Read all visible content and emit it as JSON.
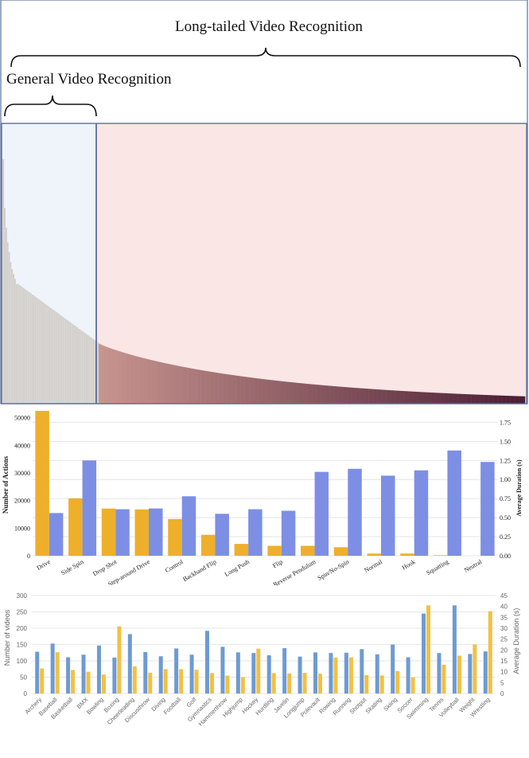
{
  "header": {
    "long_tail_label": "Long-tailed Video Recognition",
    "general_label": "General Video Recognition"
  },
  "colors": {
    "general_region": "#eef4fa",
    "longtail_region": "#fbe6e6",
    "border": "#5a6e9c",
    "gray_bar": "#cfccc8",
    "tail_start": "#c7948e",
    "tail_end": "#4a1d33",
    "orange": "#eeb02a",
    "blue": "#7d8fe4",
    "blue_small": "#6d9bd3",
    "orange_small": "#f4c042"
  },
  "chart_data": [
    {
      "type": "bar",
      "title": "",
      "description_values": "long-tailed class frequency distribution (sorted, normalized)",
      "general_split_index": 66,
      "num_bars": 358,
      "values_head": [
        1.0,
        0.8,
        0.72,
        0.66,
        0.62,
        0.58,
        0.55,
        0.53,
        0.51,
        0.49
      ],
      "values_tail_end": 0.03
    },
    {
      "type": "bar",
      "categories": [
        "Drive",
        "Side Spin",
        "Drop Shot",
        "Step-around Drive",
        "Control",
        "Backhand Flip",
        "Long Push",
        "Flip",
        "Reverse Pendulum",
        "Spin/No-Spin",
        "Normal",
        "Hook",
        "Squatting",
        "Neutral"
      ],
      "series": [
        {
          "name": "Number of Actions",
          "axis": "left",
          "values": [
            52500,
            20800,
            17100,
            16800,
            13300,
            7600,
            4300,
            3600,
            3600,
            3100,
            800,
            800,
            200,
            0
          ]
        },
        {
          "name": "Average Duration (s)",
          "axis": "right",
          "values": [
            0.56,
            1.25,
            0.61,
            0.62,
            0.78,
            0.55,
            0.61,
            0.59,
            1.1,
            1.14,
            1.05,
            1.12,
            1.38,
            1.23
          ]
        }
      ],
      "ylabel": "Number of Actions",
      "y2label": "Average Duration (s)",
      "ylim": [
        0,
        52500
      ],
      "y2lim": [
        0,
        1.9
      ],
      "yticks": [
        "0",
        "10000",
        "20000",
        "30000",
        "40000",
        "50000"
      ],
      "y2ticks": [
        "0.00",
        "0.25",
        "0.50",
        "0.75",
        "1.00",
        "1.25",
        "1.50",
        "1.75"
      ]
    },
    {
      "type": "bar",
      "categories": [
        "Archery",
        "Baseball",
        "Basketball",
        "BMX",
        "Bowling",
        "Boxing",
        "Cheerleading",
        "Discusthrow",
        "Diving",
        "Football",
        "Golf",
        "Gymnastics",
        "Hammerthrow",
        "Highjump",
        "Hockey",
        "Hurdling",
        "Javelin",
        "Longjump",
        "Polevault",
        "Rowing",
        "Running",
        "Shotput",
        "Skating",
        "Skiing",
        "Soccer",
        "Swimming",
        "Tennis",
        "Volleyball",
        "Weight",
        "Wrestling"
      ],
      "series": [
        {
          "name": "Number of videos",
          "axis": "left",
          "values": [
            128,
            153,
            111,
            119,
            147,
            110,
            182,
            127,
            114,
            138,
            119,
            192,
            143,
            126,
            124,
            117,
            139,
            113,
            126,
            124,
            125,
            136,
            120,
            150,
            111,
            245,
            124,
            270,
            121,
            129
          ]
        },
        {
          "name": "Average Duration (s)",
          "axis": "right",
          "values": [
            11.5,
            19.0,
            10.8,
            10.0,
            8.7,
            30.8,
            12.5,
            9.5,
            11.2,
            11.2,
            10.9,
            9.4,
            8.2,
            7.5,
            20.6,
            9.4,
            9.2,
            9.5,
            9.1,
            16.5,
            16.6,
            8.5,
            8.3,
            10.3,
            7.4,
            40.5,
            13.2,
            17.4,
            22.5,
            37.8
          ]
        }
      ],
      "ylabel": "Number of videos",
      "y2label": "Average Duration (s)",
      "ylim": [
        0,
        300
      ],
      "y2lim": [
        0,
        45
      ],
      "yticks": [
        "0",
        "50",
        "100",
        "150",
        "200",
        "250",
        "300"
      ],
      "y2ticks": [
        "0",
        "5",
        "10",
        "15",
        "20",
        "25",
        "30",
        "35",
        "40",
        "45"
      ]
    }
  ]
}
